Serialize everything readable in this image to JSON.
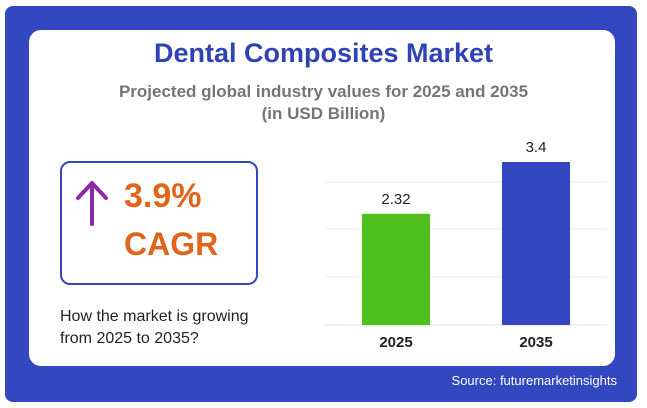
{
  "title": "Dental Composites Market",
  "subtitle_line1": "Projected global industry values for 2025 and 2035",
  "subtitle_line2": "(in USD Billion)",
  "cagr": {
    "value": "3.9%",
    "label": "CAGR",
    "arrow_icon": "arrow-up-icon",
    "arrow_color": "#8a2aa8"
  },
  "growth_text_line1": "How the market is growing",
  "growth_text_line2": "from 2025 to 2035?",
  "source": "Source: futuremarketinsights",
  "colors": {
    "frame": "#3347c0",
    "title": "#2f43b5",
    "accent": "#e0641a"
  },
  "chart_data": {
    "type": "bar",
    "categories": [
      "2025",
      "2035"
    ],
    "values": [
      2.32,
      3.4
    ],
    "value_labels": [
      "2.32",
      "3.4"
    ],
    "colors": [
      "#4ec01e",
      "#3347c0"
    ],
    "ylim": [
      0,
      3.4
    ],
    "grid": true
  }
}
